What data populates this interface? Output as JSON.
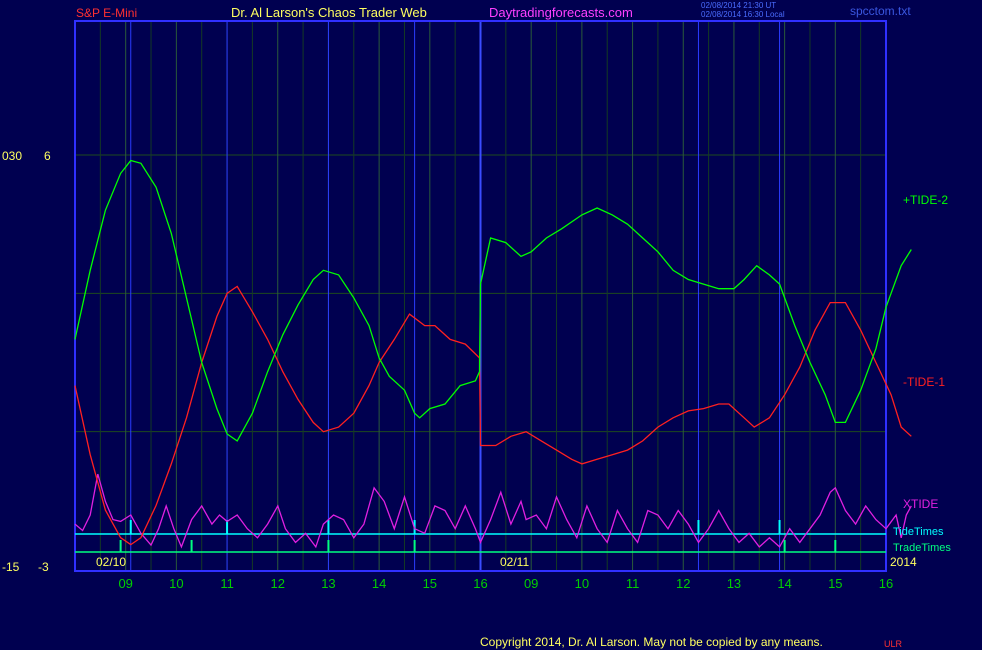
{
  "header": {
    "symbol": "S&P E-Mini",
    "brand": "Dr. Al Larson's Chaos Trader Web",
    "site": "Daytradingforecasts.com",
    "timestamp_ut": "02/08/2014 21:30 UT",
    "timestamp_local": "02/08/2014 16:30 Local",
    "file": "spcctom.txt"
  },
  "colors": {
    "background": "#000050",
    "frame": "#3030ff",
    "grid": "#1e4a1e",
    "tide_plus": "#00ff00",
    "tide_minus": "#ff2020",
    "xtide": "#e020e0",
    "tide_times": "#00ffff",
    "trade_times": "#00ff80",
    "hour_label": "#00d000",
    "axis_label": "#ffff60",
    "symbol": "#ff3030",
    "brand": "#ffff60",
    "site": "#ff40ff"
  },
  "footer": {
    "copyright": "Copyright 2014, Dr. Al Larson. May not be copied by any means.",
    "badge": "ULR"
  },
  "chart_data": {
    "type": "line",
    "y_left_labels": [
      "030",
      "6",
      "-15",
      "-3"
    ],
    "dates": [
      "02/10",
      "02/11"
    ],
    "year": "2014",
    "hours": [
      "09",
      "10",
      "11",
      "12",
      "13",
      "14",
      "15",
      "16",
      "09",
      "10",
      "11",
      "12",
      "13",
      "14",
      "15",
      "16"
    ],
    "x_hour_range": [
      8,
      24
    ],
    "ylim": [
      -3,
      6
    ],
    "grid": true,
    "session_break_x": 16,
    "series": [
      {
        "name": "+TIDE-2",
        "points": [
          [
            8.0,
            2.0
          ],
          [
            8.3,
            3.5
          ],
          [
            8.6,
            4.8
          ],
          [
            8.9,
            5.6
          ],
          [
            9.1,
            5.88
          ],
          [
            9.3,
            5.82
          ],
          [
            9.6,
            5.3
          ],
          [
            9.9,
            4.3
          ],
          [
            10.2,
            2.9
          ],
          [
            10.5,
            1.5
          ],
          [
            10.8,
            0.5
          ],
          [
            11.0,
            -0.05
          ],
          [
            11.2,
            -0.2
          ],
          [
            11.5,
            0.4
          ],
          [
            11.8,
            1.3
          ],
          [
            12.1,
            2.1
          ],
          [
            12.4,
            2.75
          ],
          [
            12.7,
            3.3
          ],
          [
            12.9,
            3.5
          ],
          [
            13.2,
            3.4
          ],
          [
            13.5,
            2.9
          ],
          [
            13.8,
            2.3
          ],
          [
            14.0,
            1.6
          ],
          [
            14.2,
            1.2
          ],
          [
            14.5,
            0.9
          ],
          [
            14.7,
            0.4
          ],
          [
            14.8,
            0.3
          ],
          [
            15.0,
            0.5
          ],
          [
            15.3,
            0.6
          ],
          [
            15.6,
            1.0
          ],
          [
            15.9,
            1.1
          ],
          [
            15.98,
            1.3
          ],
          [
            16.0,
            3.2
          ],
          [
            16.2,
            4.2
          ],
          [
            16.5,
            4.1
          ],
          [
            16.8,
            3.8
          ],
          [
            17.0,
            3.9
          ],
          [
            17.3,
            4.2
          ],
          [
            17.6,
            4.4
          ],
          [
            18.0,
            4.7
          ],
          [
            18.3,
            4.85
          ],
          [
            18.6,
            4.7
          ],
          [
            18.9,
            4.5
          ],
          [
            19.2,
            4.2
          ],
          [
            19.5,
            3.9
          ],
          [
            19.8,
            3.5
          ],
          [
            20.1,
            3.3
          ],
          [
            20.4,
            3.2
          ],
          [
            20.7,
            3.1
          ],
          [
            21.0,
            3.1
          ],
          [
            21.2,
            3.3
          ],
          [
            21.45,
            3.6
          ],
          [
            21.7,
            3.4
          ],
          [
            21.9,
            3.2
          ],
          [
            22.2,
            2.3
          ],
          [
            22.5,
            1.5
          ],
          [
            22.8,
            0.8
          ],
          [
            23.0,
            0.2
          ],
          [
            23.2,
            0.2
          ],
          [
            23.5,
            0.9
          ],
          [
            23.8,
            1.8
          ],
          [
            24.0,
            2.7
          ],
          [
            24.3,
            3.6
          ],
          [
            24.5,
            3.95
          ]
        ]
      },
      {
        "name": "-TIDE-1",
        "points": [
          [
            8.0,
            1.0
          ],
          [
            8.3,
            -0.5
          ],
          [
            8.6,
            -1.7
          ],
          [
            8.9,
            -2.3
          ],
          [
            9.1,
            -2.45
          ],
          [
            9.3,
            -2.3
          ],
          [
            9.6,
            -1.6
          ],
          [
            9.9,
            -0.7
          ],
          [
            10.2,
            0.3
          ],
          [
            10.5,
            1.5
          ],
          [
            10.8,
            2.5
          ],
          [
            11.0,
            3.0
          ],
          [
            11.2,
            3.15
          ],
          [
            11.5,
            2.6
          ],
          [
            11.8,
            2.0
          ],
          [
            12.1,
            1.3
          ],
          [
            12.4,
            0.7
          ],
          [
            12.7,
            0.2
          ],
          [
            12.9,
            0.0
          ],
          [
            13.2,
            0.1
          ],
          [
            13.5,
            0.4
          ],
          [
            13.8,
            1.0
          ],
          [
            14.0,
            1.5
          ],
          [
            14.3,
            2.0
          ],
          [
            14.6,
            2.55
          ],
          [
            14.9,
            2.3
          ],
          [
            15.1,
            2.3
          ],
          [
            15.4,
            2.0
          ],
          [
            15.7,
            1.9
          ],
          [
            15.98,
            1.6
          ],
          [
            16.0,
            -0.3
          ],
          [
            16.3,
            -0.3
          ],
          [
            16.6,
            -0.1
          ],
          [
            16.9,
            -0.0
          ],
          [
            17.2,
            -0.2
          ],
          [
            17.5,
            -0.4
          ],
          [
            17.8,
            -0.6
          ],
          [
            18.0,
            -0.7
          ],
          [
            18.3,
            -0.6
          ],
          [
            18.6,
            -0.5
          ],
          [
            18.9,
            -0.4
          ],
          [
            19.2,
            -0.2
          ],
          [
            19.5,
            0.1
          ],
          [
            19.8,
            0.3
          ],
          [
            20.1,
            0.45
          ],
          [
            20.4,
            0.5
          ],
          [
            20.7,
            0.6
          ],
          [
            20.9,
            0.6
          ],
          [
            21.2,
            0.3
          ],
          [
            21.4,
            0.1
          ],
          [
            21.7,
            0.3
          ],
          [
            22.0,
            0.8
          ],
          [
            22.3,
            1.4
          ],
          [
            22.6,
            2.2
          ],
          [
            22.9,
            2.8
          ],
          [
            23.2,
            2.8
          ],
          [
            23.5,
            2.2
          ],
          [
            23.8,
            1.5
          ],
          [
            24.1,
            0.8
          ],
          [
            24.3,
            0.1
          ],
          [
            24.5,
            -0.1
          ]
        ]
      }
    ],
    "xtide": {
      "name": "XTIDE",
      "ylim": [
        0,
        1
      ],
      "points": [
        [
          8.0,
          0.35
        ],
        [
          8.15,
          0.28
        ],
        [
          8.3,
          0.45
        ],
        [
          8.45,
          0.9
        ],
        [
          8.6,
          0.6
        ],
        [
          8.75,
          0.4
        ],
        [
          8.9,
          0.38
        ],
        [
          9.1,
          0.45
        ],
        [
          9.3,
          0.25
        ],
        [
          9.5,
          0.12
        ],
        [
          9.65,
          0.3
        ],
        [
          9.8,
          0.55
        ],
        [
          9.95,
          0.3
        ],
        [
          10.1,
          0.1
        ],
        [
          10.3,
          0.4
        ],
        [
          10.5,
          0.55
        ],
        [
          10.7,
          0.35
        ],
        [
          10.85,
          0.45
        ],
        [
          11.0,
          0.38
        ],
        [
          11.2,
          0.45
        ],
        [
          11.4,
          0.3
        ],
        [
          11.6,
          0.2
        ],
        [
          11.8,
          0.35
        ],
        [
          12.0,
          0.55
        ],
        [
          12.15,
          0.3
        ],
        [
          12.35,
          0.15
        ],
        [
          12.55,
          0.25
        ],
        [
          12.75,
          0.1
        ],
        [
          12.9,
          0.35
        ],
        [
          13.1,
          0.45
        ],
        [
          13.3,
          0.4
        ],
        [
          13.5,
          0.2
        ],
        [
          13.7,
          0.35
        ],
        [
          13.9,
          0.75
        ],
        [
          14.1,
          0.6
        ],
        [
          14.3,
          0.3
        ],
        [
          14.5,
          0.65
        ],
        [
          14.7,
          0.3
        ],
        [
          14.9,
          0.25
        ],
        [
          15.1,
          0.55
        ],
        [
          15.3,
          0.5
        ],
        [
          15.5,
          0.3
        ],
        [
          15.7,
          0.55
        ],
        [
          15.9,
          0.3
        ],
        [
          16.0,
          0.15
        ],
        [
          16.2,
          0.4
        ],
        [
          16.4,
          0.7
        ],
        [
          16.6,
          0.35
        ],
        [
          16.8,
          0.6
        ],
        [
          16.9,
          0.4
        ],
        [
          17.1,
          0.45
        ],
        [
          17.3,
          0.3
        ],
        [
          17.5,
          0.65
        ],
        [
          17.7,
          0.4
        ],
        [
          17.9,
          0.2
        ],
        [
          18.1,
          0.55
        ],
        [
          18.3,
          0.3
        ],
        [
          18.5,
          0.15
        ],
        [
          18.7,
          0.5
        ],
        [
          18.9,
          0.3
        ],
        [
          19.1,
          0.15
        ],
        [
          19.3,
          0.5
        ],
        [
          19.5,
          0.45
        ],
        [
          19.7,
          0.3
        ],
        [
          19.9,
          0.5
        ],
        [
          20.1,
          0.35
        ],
        [
          20.3,
          0.15
        ],
        [
          20.5,
          0.3
        ],
        [
          20.7,
          0.5
        ],
        [
          20.9,
          0.3
        ],
        [
          21.1,
          0.15
        ],
        [
          21.3,
          0.25
        ],
        [
          21.5,
          0.1
        ],
        [
          21.7,
          0.2
        ],
        [
          21.9,
          0.1
        ],
        [
          22.1,
          0.3
        ],
        [
          22.3,
          0.15
        ],
        [
          22.5,
          0.3
        ],
        [
          22.7,
          0.45
        ],
        [
          22.9,
          0.7
        ],
        [
          23.0,
          0.75
        ],
        [
          23.2,
          0.5
        ],
        [
          23.4,
          0.35
        ],
        [
          23.6,
          0.55
        ],
        [
          23.8,
          0.4
        ],
        [
          24.0,
          0.3
        ],
        [
          24.2,
          0.45
        ],
        [
          24.3,
          0.2
        ],
        [
          24.4,
          0.45
        ],
        [
          24.5,
          0.55
        ]
      ]
    },
    "tide_times": {
      "name": "TideTimes",
      "x": [
        9.1,
        11.0,
        13.0,
        14.7,
        20.3,
        21.9
      ]
    },
    "trade_times": {
      "name": "TradeTimes",
      "x": [
        8.9,
        10.3,
        13.0,
        14.7,
        22.0,
        23.0
      ]
    }
  }
}
